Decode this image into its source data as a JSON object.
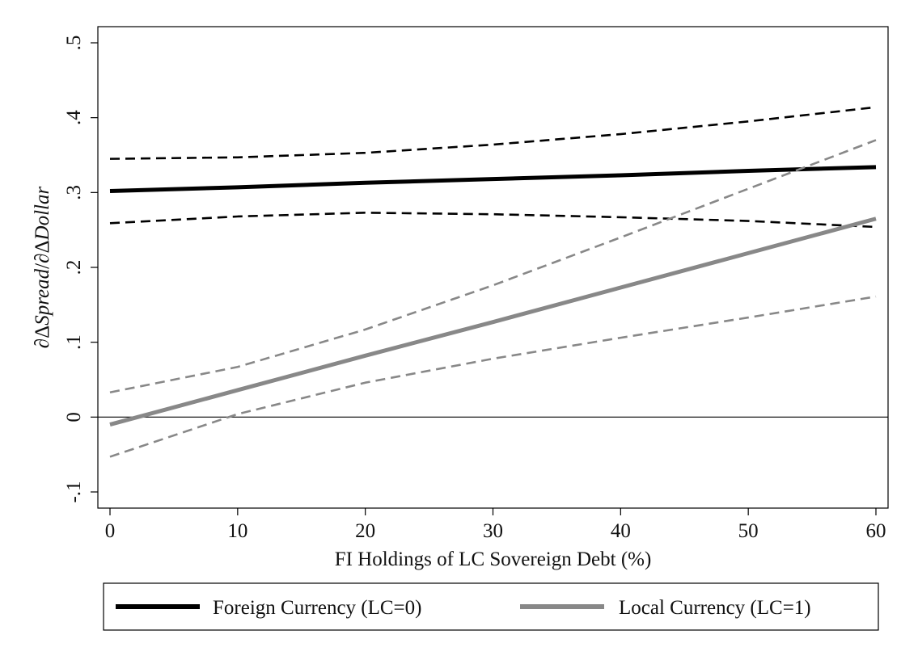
{
  "chart_data": {
    "type": "line",
    "title": "",
    "xlabel": "FI Holdings of LC Sovereign Debt (%)",
    "ylabel_parts": [
      "∂Δ",
      "Spread",
      "/∂Δ",
      "Dollar"
    ],
    "xlim": [
      0,
      60
    ],
    "ylim": [
      -0.1,
      0.5
    ],
    "x_ticks": [
      0,
      10,
      20,
      30,
      40,
      50,
      60
    ],
    "x_tick_labels": [
      "0",
      "10",
      "20",
      "30",
      "40",
      "50",
      "60"
    ],
    "y_ticks": [
      -0.1,
      0,
      0.1,
      0.2,
      0.3,
      0.4,
      0.5
    ],
    "y_tick_labels": [
      "-.1",
      "0",
      ".1",
      ".2",
      ".3",
      ".4",
      ".5"
    ],
    "reference_line_y": 0,
    "grid": false,
    "legend_position": "bottom",
    "x": [
      0,
      10,
      20,
      30,
      40,
      50,
      60
    ],
    "series": [
      {
        "name": "Foreign Currency (LC=0)",
        "role": "estimate",
        "color": "#000000",
        "values": [
          0.302,
          0.307,
          0.313,
          0.318,
          0.323,
          0.329,
          0.334
        ]
      },
      {
        "role": "upper-ci",
        "of": "Foreign Currency (LC=0)",
        "color": "#000000",
        "values": [
          0.345,
          0.347,
          0.353,
          0.364,
          0.378,
          0.395,
          0.414
        ]
      },
      {
        "role": "lower-ci",
        "of": "Foreign Currency (LC=0)",
        "color": "#000000",
        "values": [
          0.259,
          0.268,
          0.273,
          0.271,
          0.267,
          0.262,
          0.254
        ]
      },
      {
        "name": "Local Currency (LC=1)",
        "role": "estimate",
        "color": "#888888",
        "values": [
          -0.01,
          0.036,
          0.082,
          0.127,
          0.173,
          0.219,
          0.265
        ]
      },
      {
        "role": "upper-ci",
        "of": "Local Currency (LC=1)",
        "color": "#888888",
        "values": [
          0.033,
          0.067,
          0.117,
          0.176,
          0.24,
          0.305,
          0.37
        ]
      },
      {
        "role": "lower-ci",
        "of": "Local Currency (LC=1)",
        "color": "#888888",
        "values": [
          -0.053,
          0.004,
          0.046,
          0.078,
          0.106,
          0.133,
          0.161
        ]
      }
    ],
    "legend": [
      {
        "label": "Foreign Currency (LC=0)",
        "color": "#000000"
      },
      {
        "label": "Local Currency (LC=1)",
        "color": "#888888"
      }
    ]
  }
}
